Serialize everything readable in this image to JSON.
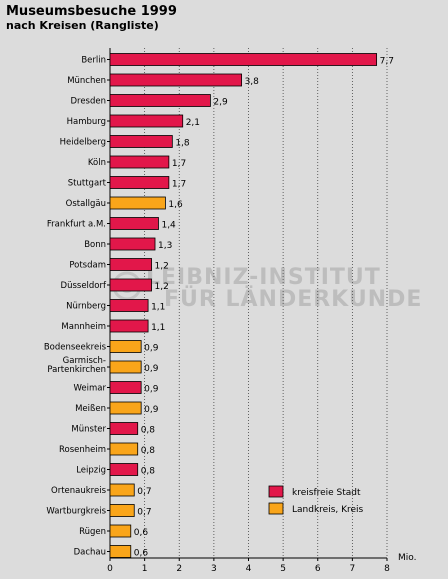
{
  "title": "Museumsbesuche 1999",
  "subtitle": "nach Kreisen (Rangliste)",
  "watermark": {
    "line1": "LEIBNIZ-INSTITUT",
    "line2": "FÜR LÄNDERKUNDE"
  },
  "colors": {
    "kreisfreie_stadt": "#e2174a",
    "landkreis": "#f9a51a",
    "background": "#dcdcdc"
  },
  "chart_data": {
    "type": "bar",
    "orientation": "horizontal",
    "unit_label": "Mio.",
    "xlim": [
      0,
      8
    ],
    "xticks": [
      0,
      1,
      2,
      3,
      4,
      5,
      6,
      7,
      8
    ],
    "grid": "vertical dotted",
    "legend_position": "bottom-right",
    "legend": [
      {
        "label": "kreisfreie Stadt",
        "type": "stadt"
      },
      {
        "label": "Landkreis, Kreis",
        "type": "kreis"
      }
    ],
    "bars": [
      {
        "name": "Berlin",
        "value": 7.7,
        "label": "7,7",
        "type": "stadt"
      },
      {
        "name": "München",
        "value": 3.8,
        "label": "3,8",
        "type": "stadt"
      },
      {
        "name": "Dresden",
        "value": 2.9,
        "label": "2,9",
        "type": "stadt"
      },
      {
        "name": "Hamburg",
        "value": 2.1,
        "label": "2,1",
        "type": "stadt"
      },
      {
        "name": "Heidelberg",
        "value": 1.8,
        "label": "1,8",
        "type": "stadt"
      },
      {
        "name": "Köln",
        "value": 1.7,
        "label": "1,7",
        "type": "stadt"
      },
      {
        "name": "Stuttgart",
        "value": 1.7,
        "label": "1,7",
        "type": "stadt"
      },
      {
        "name": "Ostallgäu",
        "value": 1.6,
        "label": "1,6",
        "type": "kreis"
      },
      {
        "name": "Frankfurt a.M.",
        "value": 1.4,
        "label": "1,4",
        "type": "stadt"
      },
      {
        "name": "Bonn",
        "value": 1.3,
        "label": "1,3",
        "type": "stadt"
      },
      {
        "name": "Potsdam",
        "value": 1.2,
        "label": "1,2",
        "type": "stadt"
      },
      {
        "name": "Düsseldorf",
        "value": 1.2,
        "label": "1,2",
        "type": "stadt"
      },
      {
        "name": "Nürnberg",
        "value": 1.1,
        "label": "1,1",
        "type": "stadt"
      },
      {
        "name": "Mannheim",
        "value": 1.1,
        "label": "1,1",
        "type": "stadt"
      },
      {
        "name": "Bodenseekreis",
        "value": 0.9,
        "label": "0,9",
        "type": "kreis"
      },
      {
        "name": "Garmisch-Partenkirchen",
        "name_lines": [
          "Garmisch-",
          "Partenkirchen"
        ],
        "value": 0.9,
        "label": "0,9",
        "type": "kreis"
      },
      {
        "name": "Weimar",
        "value": 0.9,
        "label": "0,9",
        "type": "stadt"
      },
      {
        "name": "Meißen",
        "value": 0.9,
        "label": "0,9",
        "type": "kreis"
      },
      {
        "name": "Münster",
        "value": 0.8,
        "label": "0,8",
        "type": "stadt"
      },
      {
        "name": "Rosenheim",
        "value": 0.8,
        "label": "0,8",
        "type": "kreis"
      },
      {
        "name": "Leipzig",
        "value": 0.8,
        "label": "0,8",
        "type": "stadt"
      },
      {
        "name": "Ortenaukreis",
        "value": 0.7,
        "label": "0,7",
        "type": "kreis"
      },
      {
        "name": "Wartburgkreis",
        "value": 0.7,
        "label": "0,7",
        "type": "kreis"
      },
      {
        "name": "Rügen",
        "value": 0.6,
        "label": "0,6",
        "type": "kreis"
      },
      {
        "name": "Dachau",
        "value": 0.6,
        "label": "0,6",
        "type": "kreis"
      }
    ]
  }
}
